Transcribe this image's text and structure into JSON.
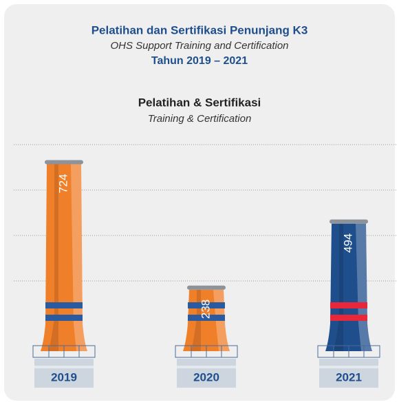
{
  "chart_data": {
    "type": "bar",
    "title": "Pelatihan dan Sertifikasi Penunjang K3",
    "title_en": "OHS Support Training and Certification",
    "period": "Tahun 2019 – 2021",
    "subtitle": "Pelatihan & Sertifikasi",
    "subtitle_en": "Training & Certification",
    "categories": [
      "2019",
      "2020",
      "2021"
    ],
    "values": [
      724,
      238,
      494
    ],
    "colors": [
      "#f07f2a",
      "#f07f2a",
      "#1f4e8c"
    ],
    "band_colors": [
      "#2a5aa0",
      "#2a5aa0",
      "#e8283a"
    ],
    "ylim": [
      0,
      800
    ]
  }
}
